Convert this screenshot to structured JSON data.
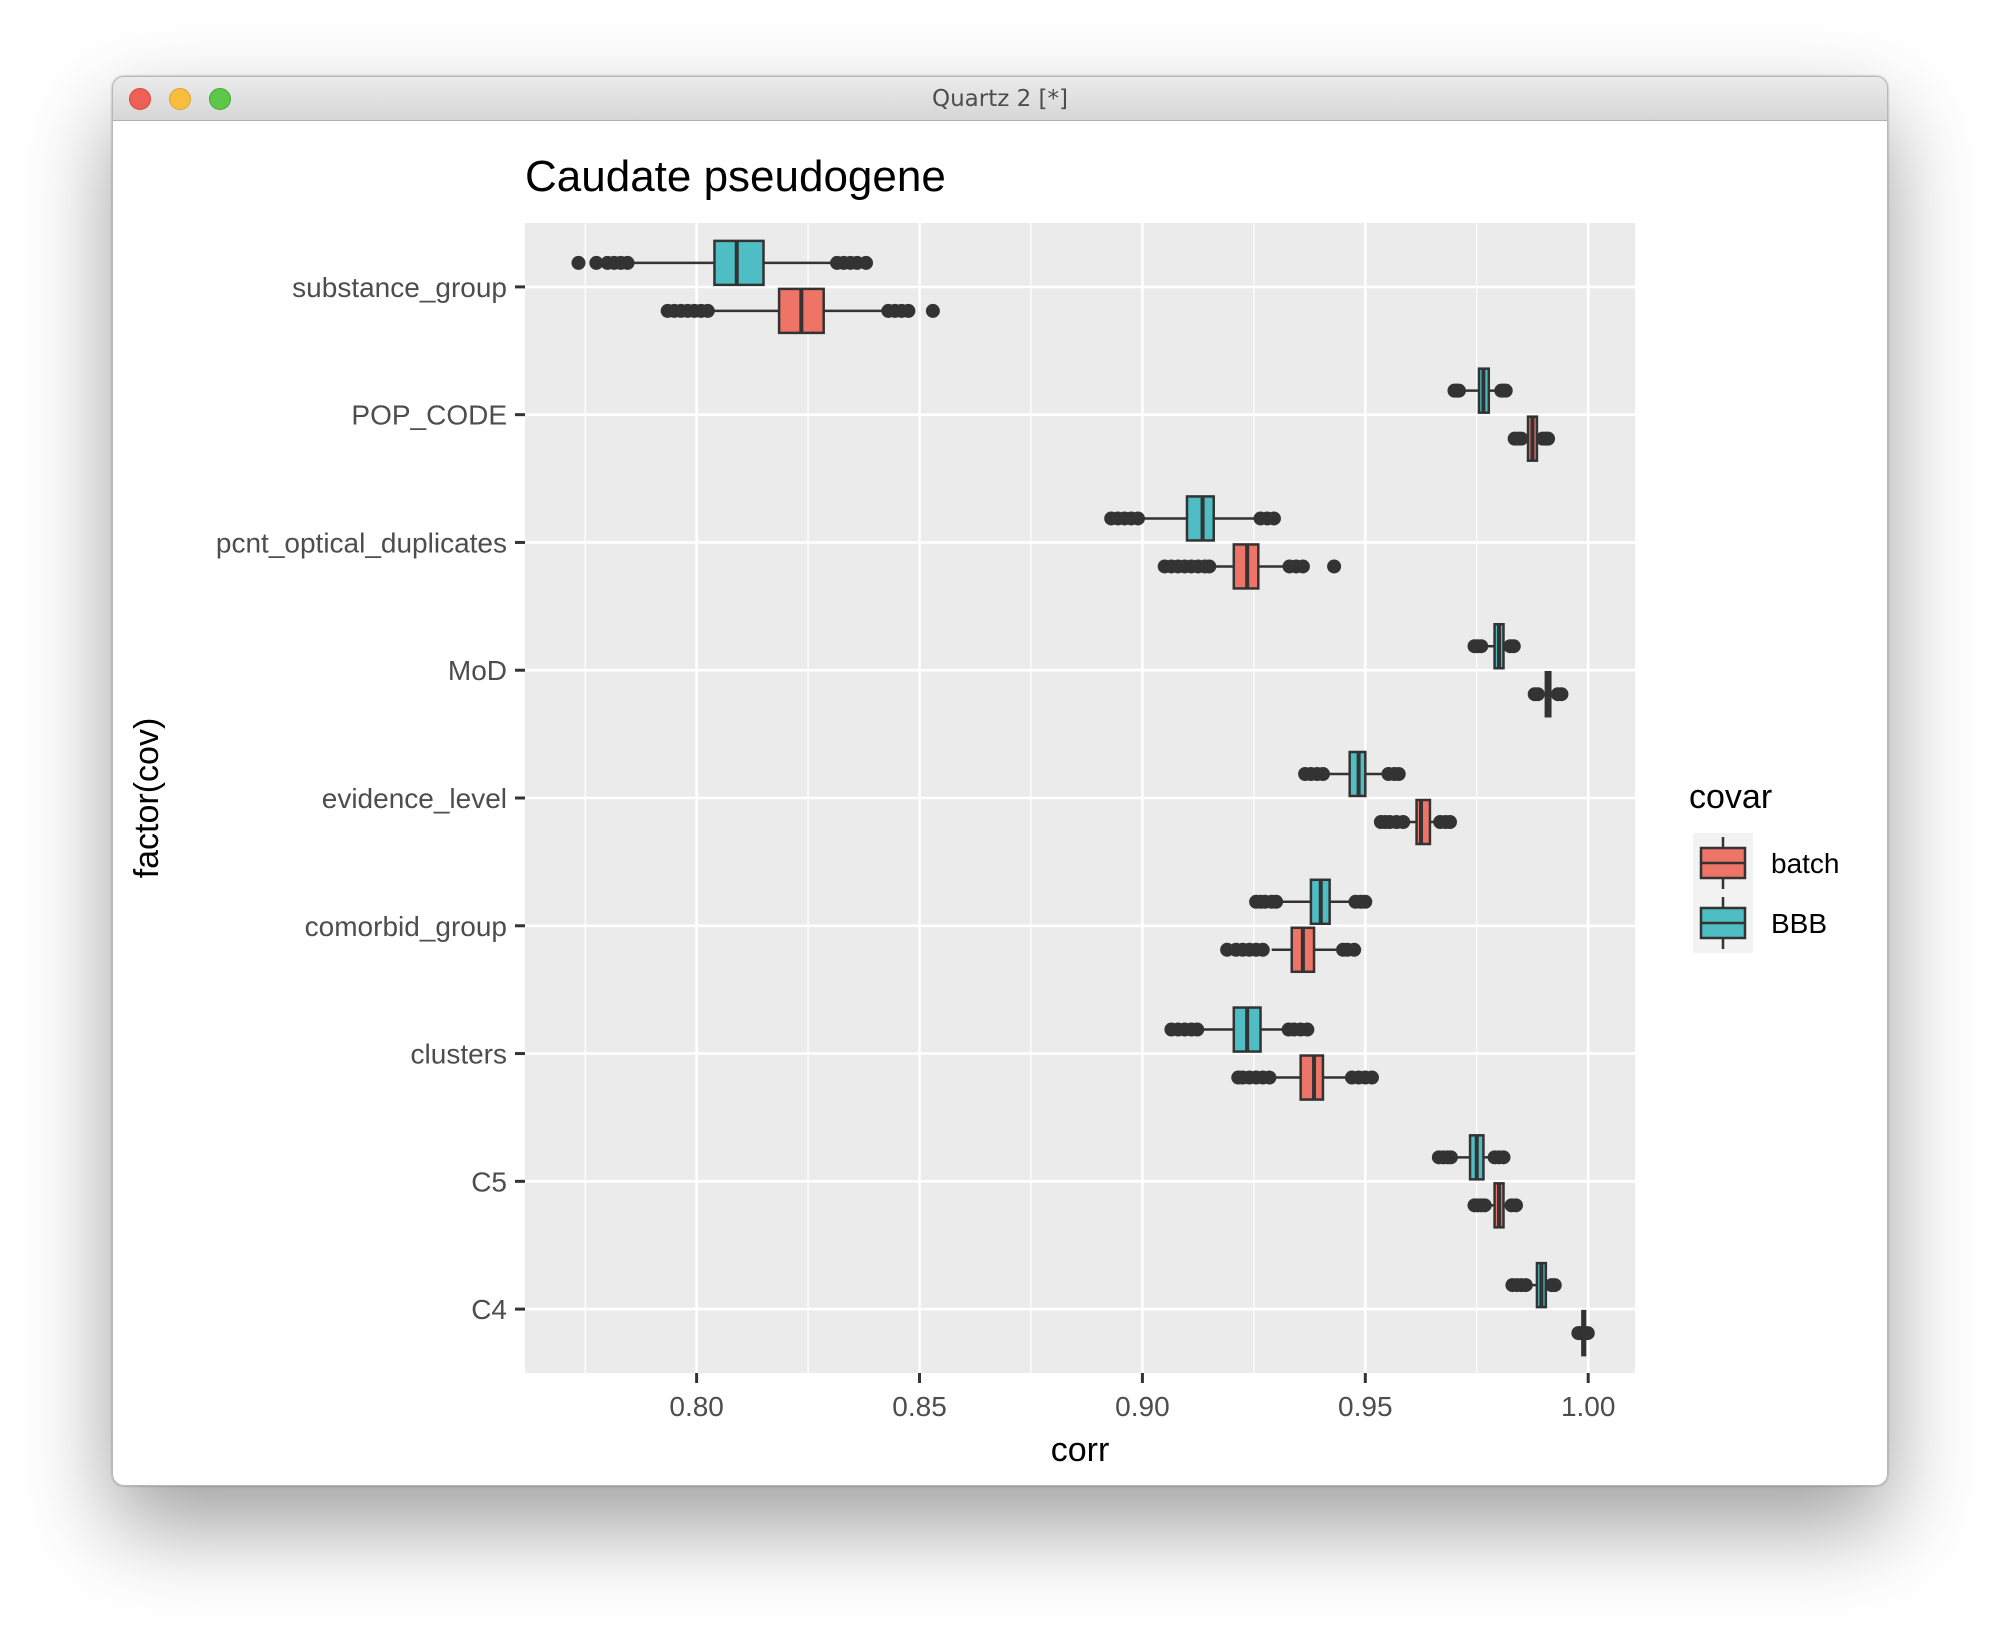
{
  "window": {
    "title": "Quartz 2 [*]"
  },
  "chart_data": {
    "type": "boxplot",
    "orientation": "horizontal",
    "title": "Caudate pseudogene",
    "xlabel": "corr",
    "ylabel": "factor(cov)",
    "xlim": [
      0.7615,
      1.0105
    ],
    "x_ticks": [
      0.8,
      0.85,
      0.9,
      0.95,
      1.0
    ],
    "x_tick_labels": [
      "0.80",
      "0.85",
      "0.90",
      "0.95",
      "1.00"
    ],
    "categories": [
      "substance_group",
      "POP_CODE",
      "pcnt_optical_duplicates",
      "MoD",
      "evidence_level",
      "comorbid_group",
      "clusters",
      "C5",
      "C4"
    ],
    "grid": true,
    "background": "#ebebeb",
    "legend": {
      "title": "covar",
      "position": "right",
      "entries": [
        "batch",
        "BBB"
      ]
    },
    "series": [
      {
        "name": "BBB",
        "color": "#4fbdc4",
        "boxes": [
          {
            "whisker_low": 0.786,
            "q1": 0.804,
            "median": 0.809,
            "q3": 0.815,
            "whisker_high": 0.831,
            "outliers": [
              0.7735,
              0.7775,
              0.78,
              0.7815,
              0.783,
              0.7845,
              0.8315,
              0.833,
              0.8345,
              0.836,
              0.838
            ]
          },
          {
            "whisker_low": 0.9715,
            "q1": 0.9755,
            "median": 0.9765,
            "q3": 0.9777,
            "whisker_high": 0.98,
            "outliers": [
              0.97,
              0.9705,
              0.971,
              0.9805,
              0.981,
              0.9815
            ]
          },
          {
            "whisker_low": 0.9002,
            "q1": 0.91,
            "median": 0.9135,
            "q3": 0.916,
            "whisker_high": 0.9255,
            "outliers": [
              0.893,
              0.8945,
              0.896,
              0.8975,
              0.899,
              0.9265,
              0.928,
              0.9295
            ]
          },
          {
            "whisker_low": 0.976,
            "q1": 0.979,
            "median": 0.98,
            "q3": 0.981,
            "whisker_high": 0.982,
            "outliers": [
              0.9745,
              0.9752,
              0.976,
              0.9825,
              0.9833
            ]
          },
          {
            "whisker_low": 0.9415,
            "q1": 0.9465,
            "median": 0.9485,
            "q3": 0.95,
            "whisker_high": 0.9545,
            "outliers": [
              0.9365,
              0.9378,
              0.9392,
              0.9405,
              0.9552,
              0.9565,
              0.9575
            ]
          },
          {
            "whisker_low": 0.931,
            "q1": 0.9378,
            "median": 0.94,
            "q3": 0.942,
            "whisker_high": 0.947,
            "outliers": [
              0.9255,
              0.9265,
              0.9275,
              0.929,
              0.93,
              0.9478,
              0.949,
              0.95
            ]
          },
          {
            "whisker_low": 0.913,
            "q1": 0.9205,
            "median": 0.9235,
            "q3": 0.9265,
            "whisker_high": 0.932,
            "outliers": [
              0.9065,
              0.908,
              0.9095,
              0.911,
              0.9123,
              0.9328,
              0.934,
              0.9355,
              0.937
            ]
          },
          {
            "whisker_low": 0.97,
            "q1": 0.9735,
            "median": 0.975,
            "q3": 0.9765,
            "whisker_high": 0.978,
            "outliers": [
              0.9665,
              0.9675,
              0.9685,
              0.9692,
              0.979,
              0.98,
              0.981
            ]
          },
          {
            "whisker_low": 0.987,
            "q1": 0.9885,
            "median": 0.9895,
            "q3": 0.9905,
            "whisker_high": 0.991,
            "outliers": [
              0.983,
              0.984,
              0.985,
              0.986,
              0.9918,
              0.9925
            ]
          }
        ]
      },
      {
        "name": "batch",
        "color": "#ee7467",
        "boxes": [
          {
            "whisker_low": 0.8035,
            "q1": 0.8185,
            "median": 0.8235,
            "q3": 0.8285,
            "whisker_high": 0.842,
            "outliers": [
              0.7935,
              0.795,
              0.7965,
              0.798,
              0.7995,
              0.801,
              0.8025,
              0.843,
              0.8445,
              0.846,
              0.8475,
              0.853
            ]
          },
          {
            "whisker_low": 0.985,
            "q1": 0.9865,
            "median": 0.9875,
            "q3": 0.9885,
            "whisker_high": 0.9895,
            "outliers": [
              0.9835,
              0.9843,
              0.985,
              0.9898,
              0.9905,
              0.991
            ]
          },
          {
            "whisker_low": 0.916,
            "q1": 0.9205,
            "median": 0.9235,
            "q3": 0.926,
            "whisker_high": 0.932,
            "outliers": [
              0.905,
              0.9065,
              0.908,
              0.9095,
              0.911,
              0.9125,
              0.914,
              0.915,
              0.933,
              0.9345,
              0.936,
              0.943
            ]
          },
          {
            "whisker_low": 0.9895,
            "q1": 0.9905,
            "median": 0.991,
            "q3": 0.9915,
            "whisker_high": 0.9925,
            "outliers": [
              0.988,
              0.9887,
              0.9932,
              0.994
            ]
          },
          {
            "whisker_low": 0.96,
            "q1": 0.9615,
            "median": 0.9625,
            "q3": 0.9645,
            "whisker_high": 0.9655,
            "outliers": [
              0.9535,
              0.9545,
              0.9555,
              0.957,
              0.9585,
              0.9668,
              0.968,
              0.969
            ]
          },
          {
            "whisker_low": 0.929,
            "q1": 0.9335,
            "median": 0.936,
            "q3": 0.9385,
            "whisker_high": 0.944,
            "outliers": [
              0.919,
              0.921,
              0.9225,
              0.924,
              0.9255,
              0.927,
              0.945,
              0.946,
              0.9475
            ]
          },
          {
            "whisker_low": 0.93,
            "q1": 0.9355,
            "median": 0.9385,
            "q3": 0.9405,
            "whisker_high": 0.946,
            "outliers": [
              0.9215,
              0.9225,
              0.924,
              0.9255,
              0.927,
              0.9285,
              0.947,
              0.9485,
              0.95,
              0.9515
            ]
          },
          {
            "whisker_low": 0.9775,
            "q1": 0.979,
            "median": 0.98,
            "q3": 0.981,
            "whisker_high": 0.982,
            "outliers": [
              0.9745,
              0.9752,
              0.976,
              0.9768,
              0.9828,
              0.9838
            ]
          },
          {
            "whisker_low": 0.9983,
            "q1": 0.9987,
            "median": 0.999,
            "q3": 0.9993,
            "whisker_high": 0.9997,
            "outliers": [
              0.9978,
              0.9982,
              0.9995,
              0.9999
            ]
          }
        ]
      }
    ]
  }
}
